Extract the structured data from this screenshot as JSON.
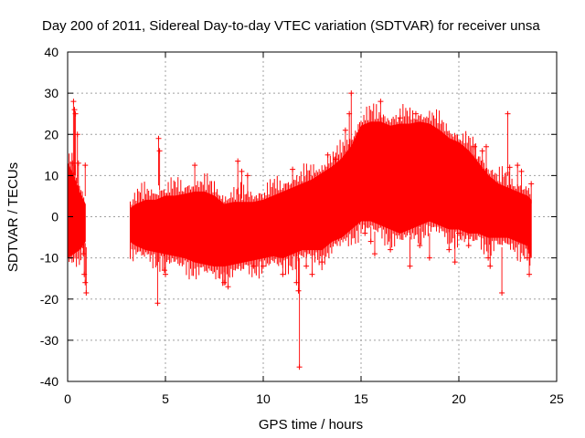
{
  "chart_data": {
    "type": "scatter",
    "title": "Day 200 of 2011, Sidereal Day-to-day VTEC variation (SDTVAR) for receiver unsa",
    "xlabel": "GPS time / hours",
    "ylabel": "SDTVAR / TECUs",
    "xlim": [
      0,
      25
    ],
    "ylim": [
      -40,
      40
    ],
    "xticks": [
      0,
      5,
      10,
      15,
      20,
      25
    ],
    "yticks": [
      -40,
      -30,
      -20,
      -10,
      0,
      10,
      20,
      30,
      40
    ],
    "grid": true,
    "marker": "+",
    "color": "#ff0000",
    "series": [
      {
        "name": "SDTVAR",
        "envelope": {
          "description": "dense band of points, upper and lower bounds by GPS hour",
          "x": [
            0.0,
            0.3,
            0.6,
            0.9,
            3.2,
            3.5,
            4.0,
            4.5,
            5.0,
            5.5,
            6.0,
            6.5,
            7.0,
            7.5,
            8.0,
            8.5,
            9.0,
            9.5,
            10.0,
            10.5,
            11.0,
            11.5,
            12.0,
            12.5,
            13.0,
            13.5,
            14.0,
            14.5,
            15.0,
            15.5,
            16.0,
            16.5,
            17.0,
            17.5,
            18.0,
            18.5,
            19.0,
            19.5,
            20.0,
            20.5,
            21.0,
            21.5,
            22.0,
            22.5,
            23.0,
            23.5,
            23.7
          ],
          "upper": [
            13,
            10,
            6,
            3,
            2,
            3,
            4,
            4,
            5,
            5,
            5.5,
            6,
            6,
            5,
            3,
            3.5,
            3.5,
            3.5,
            4,
            5,
            6,
            7,
            8,
            9,
            10.5,
            12,
            14,
            17,
            22,
            23,
            23,
            22,
            22.5,
            22.5,
            23,
            22.5,
            21,
            19,
            18,
            16,
            13,
            10,
            8,
            7,
            6,
            5,
            4
          ],
          "lower": [
            -10,
            -9,
            -8,
            -6,
            -6,
            -7,
            -8,
            -8.5,
            -9,
            -9.5,
            -10,
            -11,
            -11.5,
            -12,
            -12,
            -11.5,
            -11,
            -10.5,
            -10,
            -9.5,
            -10,
            -9,
            -8,
            -8,
            -8,
            -6,
            -5,
            -3,
            -1,
            -1,
            -2,
            -3,
            -4,
            -3,
            -2,
            -1,
            -2,
            -3,
            -3,
            -4,
            -4,
            -5,
            -5,
            -5,
            -6,
            -7,
            -10
          ]
        },
        "points": [
          [
            0.3,
            28
          ],
          [
            0.35,
            26
          ],
          [
            0.4,
            25
          ],
          [
            0.5,
            20
          ],
          [
            0.25,
            13
          ],
          [
            0.55,
            13
          ],
          [
            0.9,
            12.5
          ],
          [
            0.8,
            -9
          ],
          [
            0.85,
            -14
          ],
          [
            0.9,
            -16
          ],
          [
            0.95,
            -18.5
          ],
          [
            4.65,
            19
          ],
          [
            4.7,
            16
          ],
          [
            4.6,
            -21
          ],
          [
            4.95,
            -13
          ],
          [
            5.0,
            -14
          ],
          [
            6.5,
            12.5
          ],
          [
            8.0,
            -16
          ],
          [
            8.2,
            -17
          ],
          [
            8.7,
            13.5
          ],
          [
            8.9,
            11
          ],
          [
            9.2,
            10
          ],
          [
            9.5,
            -12
          ],
          [
            10.0,
            -12
          ],
          [
            11.0,
            -14
          ],
          [
            11.5,
            11.5
          ],
          [
            11.7,
            -16
          ],
          [
            11.8,
            -18
          ],
          [
            11.85,
            -36.5
          ],
          [
            12.2,
            -12
          ],
          [
            12.5,
            -14
          ],
          [
            13.0,
            -11
          ],
          [
            13.3,
            15
          ],
          [
            13.7,
            14
          ],
          [
            14.2,
            21
          ],
          [
            14.4,
            25
          ],
          [
            14.5,
            30
          ],
          [
            14.8,
            18
          ],
          [
            15.2,
            -4
          ],
          [
            15.5,
            -6
          ],
          [
            15.7,
            -9
          ],
          [
            16.0,
            28
          ],
          [
            16.5,
            -8
          ],
          [
            17.0,
            24
          ],
          [
            17.5,
            -12
          ],
          [
            17.8,
            25
          ],
          [
            18.0,
            -7
          ],
          [
            18.5,
            -10
          ],
          [
            19.0,
            19
          ],
          [
            19.5,
            -8
          ],
          [
            19.8,
            -11
          ],
          [
            20.0,
            -4
          ],
          [
            20.5,
            -7
          ],
          [
            20.8,
            17
          ],
          [
            21.2,
            16
          ],
          [
            21.4,
            17
          ],
          [
            21.5,
            -10
          ],
          [
            21.6,
            -12
          ],
          [
            22.2,
            -18.5
          ],
          [
            22.5,
            25
          ],
          [
            22.6,
            12
          ],
          [
            23.0,
            12.5
          ],
          [
            23.2,
            11
          ],
          [
            23.3,
            -6
          ],
          [
            23.5,
            -10
          ],
          [
            23.6,
            -14
          ],
          [
            23.7,
            8
          ]
        ]
      }
    ]
  }
}
